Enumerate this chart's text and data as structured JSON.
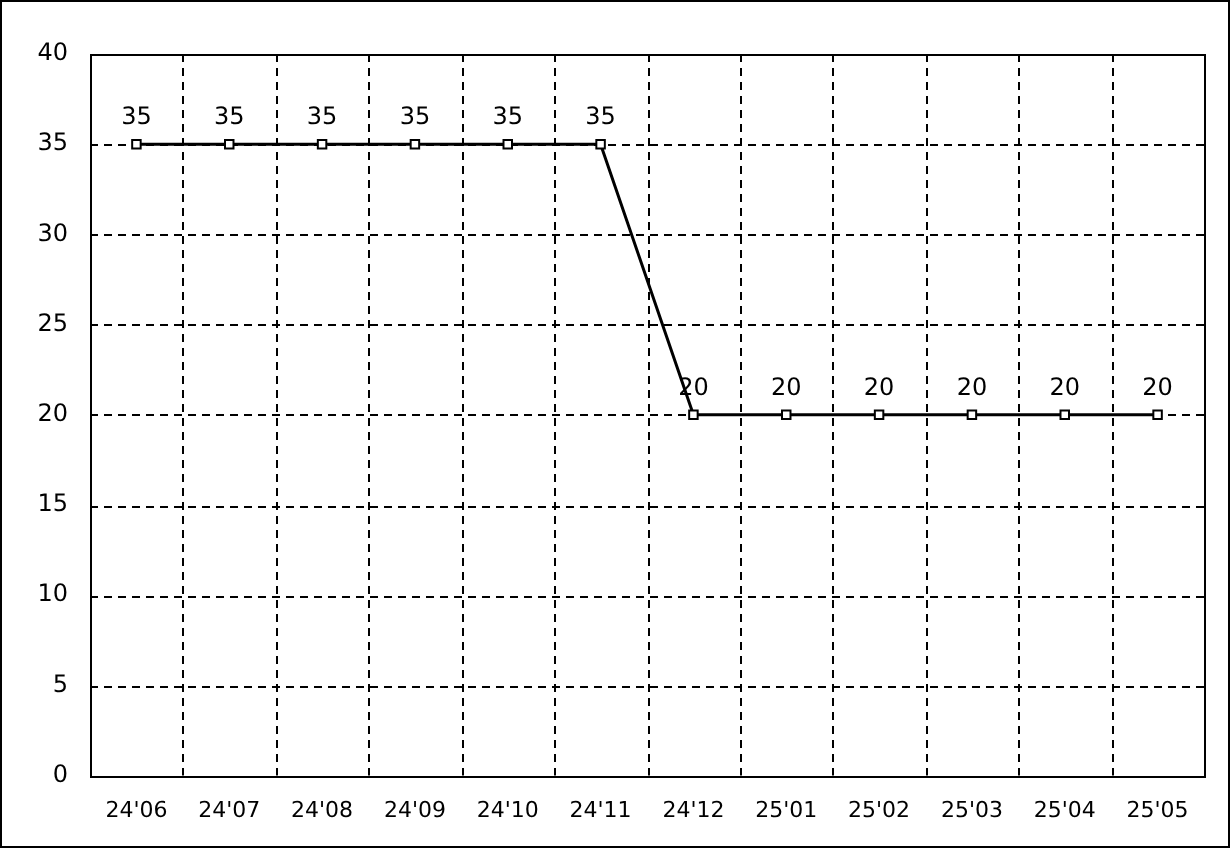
{
  "chart_data": {
    "type": "line",
    "categories": [
      "24'06",
      "24'07",
      "24'08",
      "24'09",
      "24'10",
      "24'11",
      "24'12",
      "25'01",
      "25'02",
      "25'03",
      "25'04",
      "25'05"
    ],
    "series": [
      {
        "color": "#000000",
        "values": [
          35,
          35,
          35,
          35,
          35,
          35,
          20,
          20,
          20,
          20,
          20,
          20
        ]
      }
    ],
    "ylim": [
      0,
      40
    ],
    "yticks": [
      0,
      5,
      10,
      15,
      20,
      25,
      30,
      35,
      40
    ],
    "grid": true,
    "legend": false,
    "marker": "square",
    "line_style": "solid",
    "data_labels": true
  }
}
